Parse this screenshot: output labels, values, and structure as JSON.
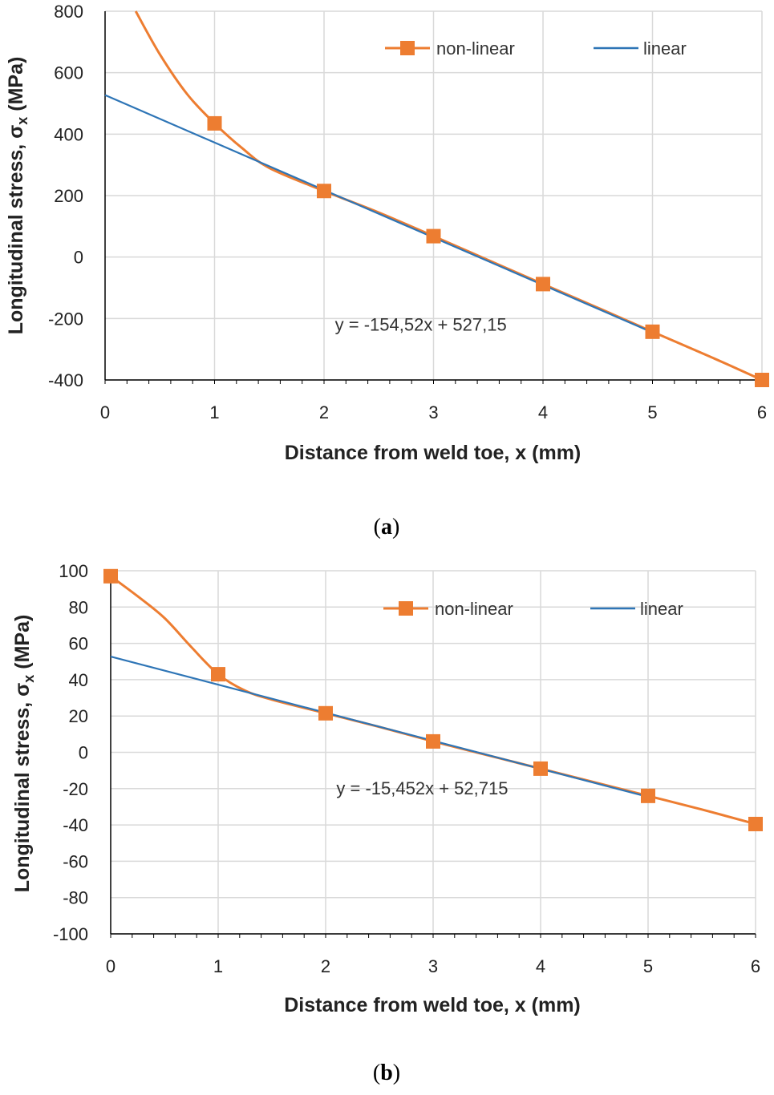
{
  "colors": {
    "nonlinear": "#ED7D31",
    "linear": "#2E75B6",
    "grid": "#D9D9D9",
    "axis": "#000000"
  },
  "chart_data": [
    {
      "type": "line",
      "panel_label": "a",
      "xlabel": "Distance from weld toe, x (mm)",
      "ylabel": "Longitudinal stress, σ",
      "ylabel_sub": "x",
      "ylabel_unit": " (MPa)",
      "xlim": [
        0,
        6
      ],
      "ylim": [
        -400,
        800
      ],
      "xticks": [
        0,
        1,
        2,
        3,
        4,
        5,
        6
      ],
      "yticks": [
        -400,
        -200,
        0,
        200,
        400,
        600,
        800
      ],
      "series": [
        {
          "name": "non-linear",
          "curve_x": [
            0.28,
            0.5,
            0.75,
            1.0,
            1.25,
            1.5,
            2.0,
            2.5,
            3.0,
            3.5,
            4.0,
            4.5,
            5.0,
            5.5,
            6.0
          ],
          "curve_y": [
            800,
            660,
            530,
            435,
            355,
            290,
            215,
            145,
            68,
            -10,
            -88,
            -165,
            -243,
            -320,
            -400
          ],
          "markers_x": [
            1,
            2,
            3,
            4,
            5,
            6
          ],
          "markers_y": [
            435,
            215,
            68,
            -88,
            -243,
            -400
          ]
        },
        {
          "name": "linear",
          "x": [
            0,
            5
          ],
          "slope": -154.52,
          "intercept": 527.15
        }
      ],
      "equation": "y = -154,52x + 527,15",
      "equation_pos": {
        "x": 2.1,
        "y": -245
      }
    },
    {
      "type": "line",
      "panel_label": "b",
      "xlabel": "Distance from weld toe, x (mm)",
      "ylabel": "Longitudinal stress, σ",
      "ylabel_sub": "x",
      "ylabel_unit": " (MPa)",
      "xlim": [
        0,
        6
      ],
      "ylim": [
        -100,
        100
      ],
      "xticks": [
        0,
        1,
        2,
        3,
        4,
        5,
        6
      ],
      "yticks": [
        -100,
        -80,
        -60,
        -40,
        -20,
        0,
        20,
        40,
        60,
        80,
        100
      ],
      "series": [
        {
          "name": "non-linear",
          "curve_x": [
            0,
            0.25,
            0.5,
            0.75,
            1.0,
            1.25,
            1.5,
            2.0,
            2.5,
            3.0,
            3.5,
            4.0,
            4.5,
            5.0,
            5.5,
            6.0
          ],
          "curve_y": [
            97,
            86,
            74,
            58,
            43,
            34,
            29,
            21.5,
            14,
            6,
            -1.5,
            -9,
            -16.5,
            -24,
            -31.5,
            -39.5
          ],
          "markers_x": [
            0,
            1,
            2,
            3,
            4,
            5,
            6
          ],
          "markers_y": [
            97,
            43,
            21.5,
            6,
            -9,
            -24,
            -39.5
          ]
        },
        {
          "name": "linear",
          "x": [
            0,
            5
          ],
          "slope": -15.452,
          "intercept": 52.715
        }
      ],
      "equation": "y = -15,452x + 52,715",
      "equation_pos": {
        "x": 2.1,
        "y": -24
      }
    }
  ]
}
